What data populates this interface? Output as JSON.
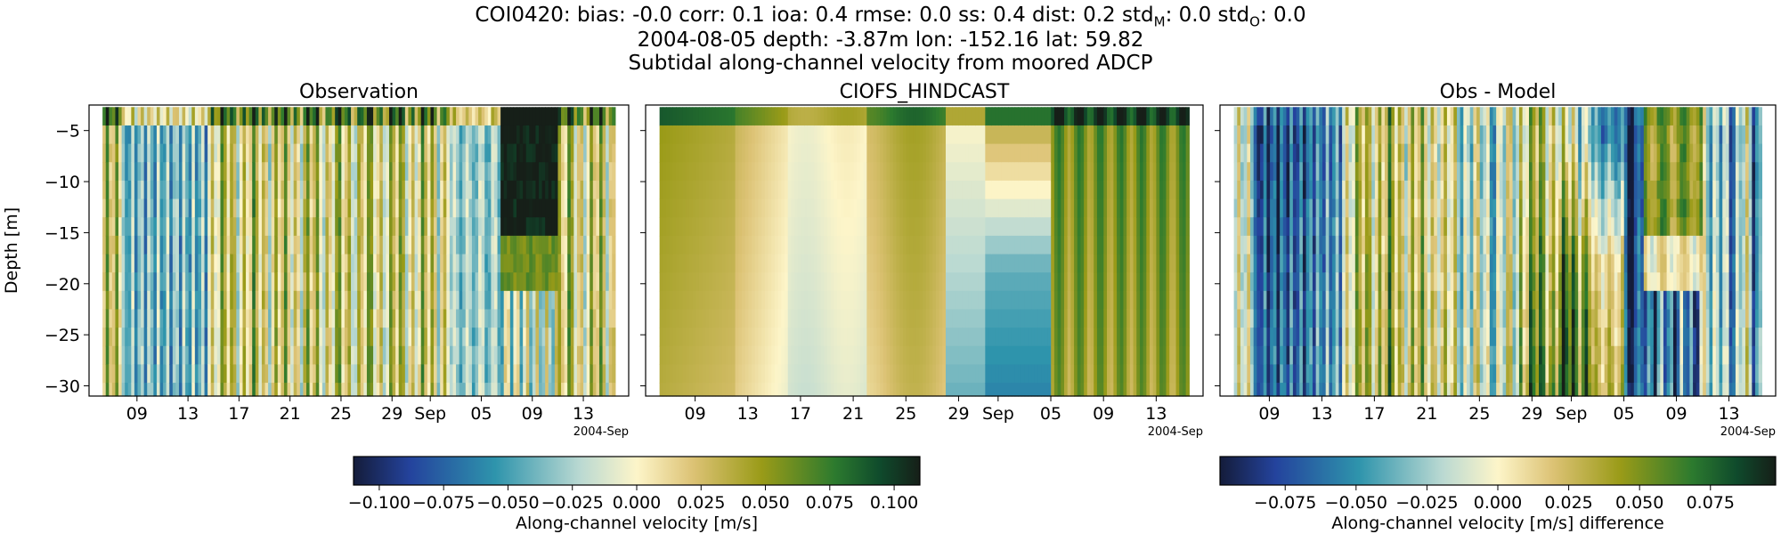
{
  "title": {
    "station": "COI0420",
    "stats": [
      {
        "label": "bias",
        "value": "-0.0"
      },
      {
        "label": "corr",
        "value": "0.1"
      },
      {
        "label": "ioa",
        "value": "0.4"
      },
      {
        "label": "rmse",
        "value": "0.0"
      },
      {
        "label": "ss",
        "value": "0.4"
      },
      {
        "label": "dist",
        "value": "0.2"
      },
      {
        "label": "std",
        "sub": "M",
        "value": "0.0"
      },
      {
        "label": "std",
        "sub": "O",
        "value": "0.0"
      }
    ],
    "line2": "2004-08-05 depth: -3.87m lon: -152.16 lat: 59.82",
    "line3": "Subtidal along-channel velocity from moored ADCP"
  },
  "chart_data": [
    {
      "type": "heatmap",
      "title": "Observation",
      "ylabel": "Depth [m]",
      "ylim": [
        -31,
        -2.5
      ],
      "yticks": [
        -5,
        -10,
        -15,
        -20,
        -25,
        -30
      ],
      "xticks": [
        "09",
        "13",
        "17",
        "21",
        "25",
        "29",
        "Sep",
        "05",
        "09",
        "13"
      ],
      "x_offset_label": "2004-Sep",
      "colorbar": {
        "label": "Along-channel velocity [m/s]",
        "range": [
          -0.11,
          0.11
        ],
        "ticks": [
          "−0.100",
          "−0.075",
          "−0.050",
          "−0.025",
          "0.000",
          "0.025",
          "0.050",
          "0.075",
          "0.100"
        ]
      }
    },
    {
      "type": "heatmap",
      "title": "CIOFS_HINDCAST",
      "ylim": [
        -31,
        -2.5
      ],
      "xticks": [
        "09",
        "13",
        "17",
        "21",
        "25",
        "29",
        "Sep",
        "05",
        "09",
        "13"
      ],
      "x_offset_label": "2004-Sep"
    },
    {
      "type": "heatmap",
      "title": "Obs - Model",
      "ylim": [
        -31,
        -2.5
      ],
      "xticks": [
        "09",
        "13",
        "17",
        "21",
        "25",
        "29",
        "Sep",
        "05",
        "09",
        "13"
      ],
      "x_offset_label": "2004-Sep",
      "colorbar": {
        "label": "Along-channel velocity [m/s] difference",
        "range": [
          -0.098,
          0.098
        ],
        "ticks": [
          "−0.075",
          "−0.050",
          "−0.025",
          "0.000",
          "0.025",
          "0.050",
          "0.075"
        ]
      }
    }
  ]
}
